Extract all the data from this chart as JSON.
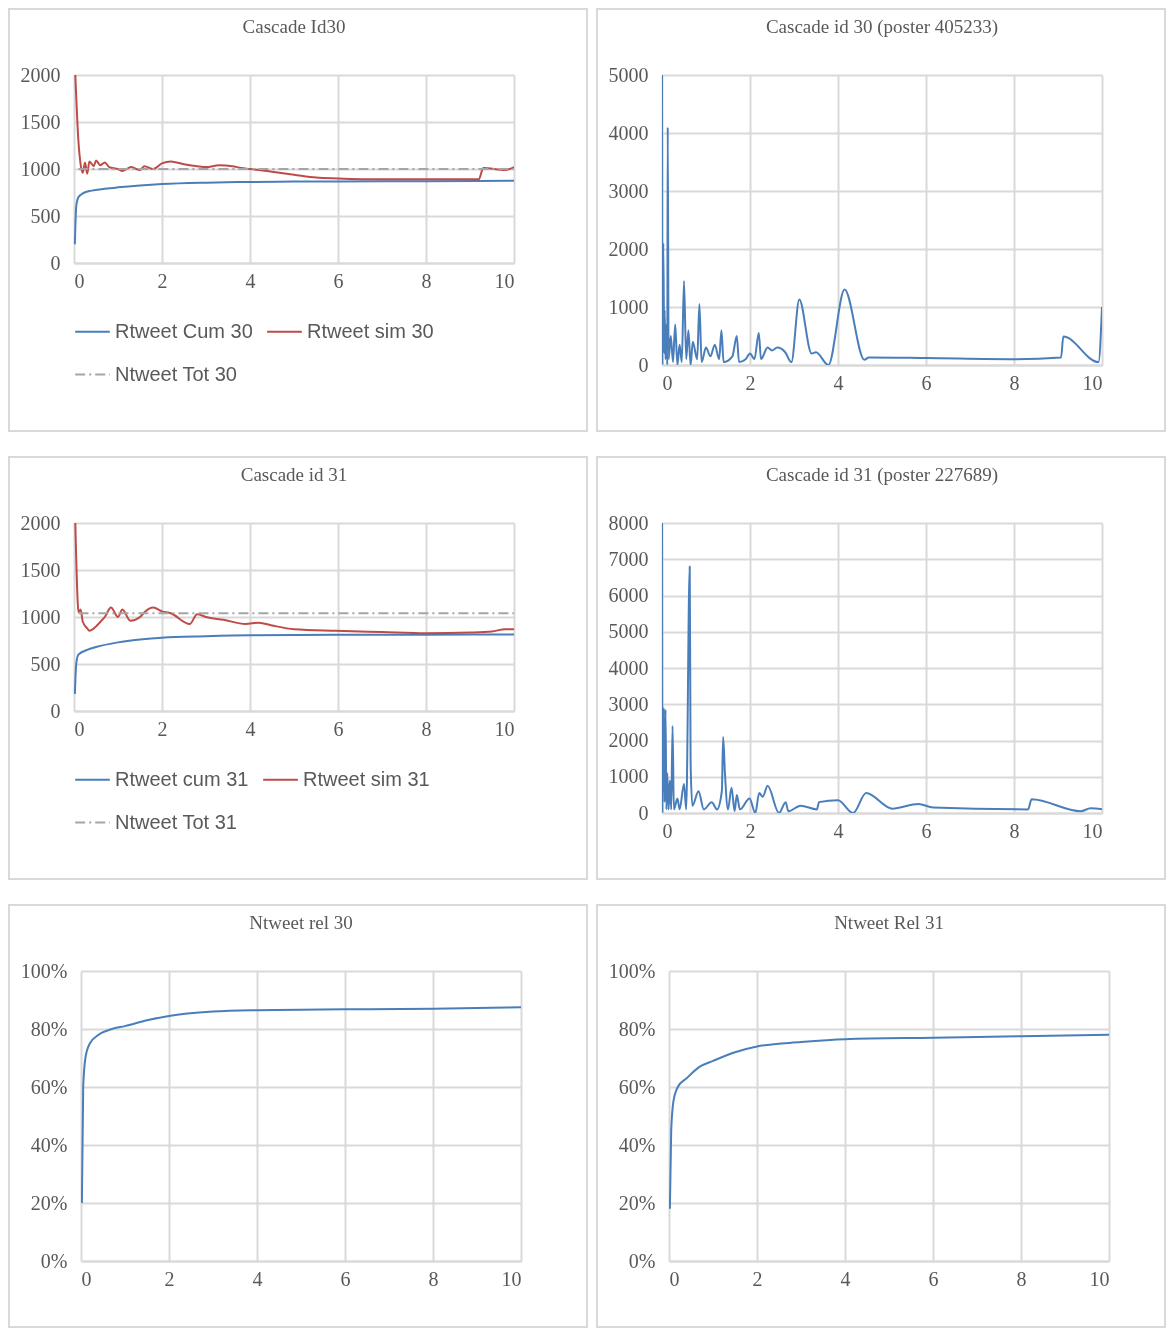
{
  "chart_data": [
    {
      "type": "line",
      "title": "Cascade Id30",
      "xlim": [
        0,
        10
      ],
      "xticks": [
        0,
        2,
        4,
        6,
        8,
        10
      ],
      "ylim": [
        0,
        2000
      ],
      "yticks": [
        0,
        500,
        1000,
        1500,
        2000
      ],
      "grid": true,
      "legend": "bottom",
      "series": [
        {
          "name": "Rtweet Cum 30",
          "color": "#4a7ebb",
          "line_style": "solid",
          "x": [
            0.02,
            0.05,
            0.1,
            0.2,
            0.4,
            0.7,
            1,
            1.5,
            2,
            3,
            4,
            5,
            6,
            8,
            10
          ],
          "values": [
            200,
            600,
            700,
            740,
            770,
            790,
            805,
            825,
            840,
            855,
            862,
            866,
            868,
            870,
            875
          ]
        },
        {
          "name": "Rtweet sim 30",
          "color": "#be4b48",
          "line_style": "solid",
          "x": [
            0.03,
            0.1,
            0.15,
            0.2,
            0.25,
            0.3,
            0.35,
            0.45,
            0.5,
            0.6,
            0.7,
            0.8,
            1,
            1.1,
            1.3,
            1.5,
            1.6,
            1.8,
            2,
            2.2,
            2.5,
            2.8,
            3,
            3.3,
            3.6,
            3.8,
            4,
            4.5,
            5,
            5.5,
            6,
            7,
            8,
            9,
            9.2,
            9.3,
            9.8,
            9.9,
            10
          ],
          "values": [
            2000,
            1300,
            1050,
            960,
            1070,
            950,
            1080,
            1030,
            1090,
            1040,
            1070,
            1020,
            1000,
            980,
            1020,
            990,
            1030,
            1000,
            1060,
            1080,
            1050,
            1030,
            1020,
            1040,
            1030,
            1010,
            1000,
            970,
            940,
            910,
            900,
            890,
            890,
            890,
            890,
            1010,
            990,
            1000,
            1020
          ]
        },
        {
          "name": "Ntweet Tot 30",
          "color": "#a5a5a5",
          "line_style": "dashed",
          "x": [
            0.1,
            10
          ],
          "values": [
            1000,
            1000
          ]
        }
      ]
    },
    {
      "type": "line",
      "title": "Cascade id 30 (poster 405233)",
      "xlim": [
        0,
        10
      ],
      "xticks": [
        0,
        2,
        4,
        6,
        8,
        10
      ],
      "ylim": [
        0,
        5000
      ],
      "yticks": [
        0,
        1000,
        2000,
        3000,
        4000,
        5000
      ],
      "grid": true,
      "series": [
        {
          "color": "#4a7ebb",
          "x": [
            0,
            0.01,
            0.03,
            0.05,
            0.06,
            0.08,
            0.1,
            0.12,
            0.13,
            0.15,
            0.2,
            0.25,
            0.3,
            0.35,
            0.4,
            0.45,
            0.5,
            0.55,
            0.6,
            0.65,
            0.7,
            0.8,
            0.85,
            0.9,
            1,
            1.1,
            1.2,
            1.3,
            1.35,
            1.4,
            1.6,
            1.7,
            1.75,
            1.9,
            2,
            2.1,
            2.2,
            2.25,
            2.4,
            2.5,
            2.62,
            2.8,
            2.94,
            3.12,
            3.4,
            3.5,
            3.78,
            4.15,
            4.6,
            4.7,
            6,
            8,
            9.07,
            9.12,
            9.92,
            10
          ],
          "values": [
            5000,
            0,
            2100,
            200,
            950,
            100,
            700,
            0,
            4100,
            100,
            500,
            50,
            700,
            0,
            350,
            50,
            1450,
            100,
            600,
            0,
            400,
            100,
            1050,
            50,
            300,
            150,
            350,
            100,
            600,
            50,
            150,
            500,
            50,
            100,
            200,
            100,
            550,
            100,
            300,
            250,
            300,
            220,
            50,
            1130,
            200,
            220,
            0,
            1300,
            90,
            130,
            120,
            100,
            130,
            490,
            50,
            1000
          ]
        }
      ]
    },
    {
      "type": "line",
      "title": "Cascade id 31",
      "xlim": [
        0,
        10
      ],
      "xticks": [
        0,
        2,
        4,
        6,
        8,
        10
      ],
      "ylim": [
        0,
        2000
      ],
      "yticks": [
        0,
        500,
        1000,
        1500,
        2000
      ],
      "grid": true,
      "legend": "bottom",
      "series": [
        {
          "name": "Rtweet cum 31",
          "color": "#4a7ebb",
          "line_style": "solid",
          "x": [
            0.02,
            0.05,
            0.1,
            0.3,
            0.5,
            1,
            1.5,
            2,
            3,
            4,
            6,
            8,
            10
          ],
          "values": [
            180,
            500,
            600,
            650,
            680,
            730,
            760,
            780,
            795,
            805,
            810,
            812,
            815
          ]
        },
        {
          "name": "Rtweet sim 31",
          "color": "#be4b48",
          "line_style": "solid",
          "x": [
            0.03,
            0.08,
            0.1,
            0.15,
            0.2,
            0.3,
            0.35,
            0.5,
            0.6,
            0.7,
            0.84,
            1,
            1.1,
            1.28,
            1.5,
            1.6,
            1.8,
            2,
            2.2,
            2.63,
            2.8,
            3,
            3.4,
            3.9,
            4.2,
            4.5,
            5,
            5.95,
            7,
            8,
            9,
            9.5,
            9.8,
            10
          ],
          "values": [
            2000,
            1200,
            1050,
            1080,
            950,
            880,
            853,
            900,
            950,
            1000,
            1100,
            1000,
            1080,
            960,
            1000,
            1050,
            1100,
            1060,
            1040,
            925,
            1030,
            1000,
            970,
            925,
            940,
            910,
            870,
            853,
            840,
            828,
            835,
            846,
            870,
            870
          ]
        },
        {
          "name": "Ntweet Tot 31",
          "color": "#a5a5a5",
          "line_style": "dashed",
          "x": [
            0.1,
            10
          ],
          "values": [
            1040,
            1040
          ]
        }
      ]
    },
    {
      "type": "line",
      "title": "Cascade id 31 (poster 227689)",
      "xlim": [
        0,
        10
      ],
      "xticks": [
        0,
        2,
        4,
        6,
        8,
        10
      ],
      "ylim": [
        0,
        8000
      ],
      "yticks": [
        0,
        1000,
        2000,
        3000,
        4000,
        5000,
        6000,
        7000,
        8000
      ],
      "grid": true,
      "series": [
        {
          "color": "#4a7ebb",
          "x": [
            0,
            0.01,
            0.04,
            0.06,
            0.08,
            0.1,
            0.12,
            0.15,
            0.18,
            0.21,
            0.24,
            0.27,
            0.35,
            0.4,
            0.5,
            0.55,
            0.63,
            0.65,
            0.69,
            0.83,
            0.95,
            1.13,
            1.25,
            1.36,
            1.39,
            1.43,
            1.5,
            1.58,
            1.65,
            1.7,
            1.77,
            1.99,
            2.12,
            2.21,
            2.29,
            2.4,
            2.66,
            2.81,
            2.87,
            3.15,
            3.52,
            3.57,
            4,
            4.34,
            4.64,
            5.23,
            5.83,
            6.16,
            8.32,
            8.4,
            9.52,
            9.74,
            10
          ],
          "values": [
            8000,
            0,
            2900,
            300,
            2850,
            100,
            1100,
            100,
            900,
            100,
            2400,
            100,
            400,
            100,
            800,
            100,
            6800,
            1400,
            200,
            600,
            100,
            300,
            100,
            600,
            2100,
            1100,
            100,
            700,
            50,
            500,
            100,
            400,
            0,
            550,
            450,
            750,
            0,
            300,
            50,
            200,
            100,
            300,
            350,
            0,
            550,
            120,
            250,
            150,
            100,
            380,
            50,
            130,
            100
          ]
        }
      ]
    },
    {
      "type": "line",
      "title": "Ntweet rel 30",
      "xlim": [
        0,
        10
      ],
      "xticks": [
        0,
        2,
        4,
        6,
        8,
        10
      ],
      "ylim": [
        0,
        100
      ],
      "yticks": [
        {
          "value": 0,
          "label": "0%"
        },
        {
          "value": 20,
          "label": "20%"
        },
        {
          "value": 40,
          "label": "40%"
        },
        {
          "value": 60,
          "label": "60%"
        },
        {
          "value": 80,
          "label": "80%"
        },
        {
          "value": 100,
          "label": "100%"
        }
      ],
      "grid": true,
      "series": [
        {
          "color": "#4a7ebb",
          "x": [
            0.02,
            0.05,
            0.1,
            0.2,
            0.4,
            0.7,
            1,
            1.5,
            2,
            3,
            4,
            6,
            8,
            10
          ],
          "values": [
            20,
            60,
            70,
            75,
            78,
            80,
            81,
            83,
            84.5,
            86,
            86.5,
            86.8,
            87,
            87.5
          ]
        }
      ]
    },
    {
      "type": "line",
      "title": "Ntweet Rel 31",
      "xlim": [
        0,
        10
      ],
      "xticks": [
        0,
        2,
        4,
        6,
        8,
        10
      ],
      "ylim": [
        0,
        100
      ],
      "yticks": [
        {
          "value": 0,
          "label": "0%"
        },
        {
          "value": 20,
          "label": "20%"
        },
        {
          "value": 40,
          "label": "40%"
        },
        {
          "value": 60,
          "label": "60%"
        },
        {
          "value": 80,
          "label": "80%"
        },
        {
          "value": 100,
          "label": "100%"
        }
      ],
      "grid": true,
      "series": [
        {
          "color": "#4a7ebb",
          "x": [
            0.02,
            0.05,
            0.1,
            0.2,
            0.4,
            0.7,
            1,
            1.5,
            2,
            3,
            4,
            6,
            8,
            10
          ],
          "values": [
            18,
            45,
            55,
            60,
            63,
            67,
            69,
            72,
            74,
            75.5,
            76.5,
            77,
            77.5,
            78
          ]
        }
      ]
    }
  ]
}
